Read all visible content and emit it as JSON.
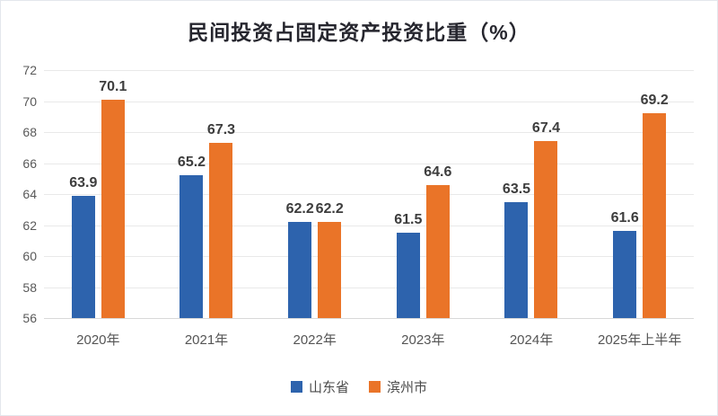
{
  "chart_data": {
    "type": "bar",
    "title": "民间投资占固定资产投资比重（%）",
    "categories": [
      "2020年",
      "2021年",
      "2022年",
      "2023年",
      "2024年",
      "2025年上半年"
    ],
    "series": [
      {
        "name": "山东省",
        "color": "#2d63ad",
        "values": [
          63.9,
          65.2,
          62.2,
          61.5,
          63.5,
          61.6
        ]
      },
      {
        "name": "滨州市",
        "color": "#ea7428",
        "values": [
          70.1,
          67.3,
          62.2,
          64.6,
          67.4,
          69.2
        ]
      }
    ],
    "ylim": [
      56,
      72
    ],
    "yticks": [
      56,
      58,
      60,
      62,
      64,
      66,
      68,
      70,
      72
    ],
    "grid": true,
    "legend_position": "bottom",
    "data_labels": true,
    "label_decimals": 1
  }
}
